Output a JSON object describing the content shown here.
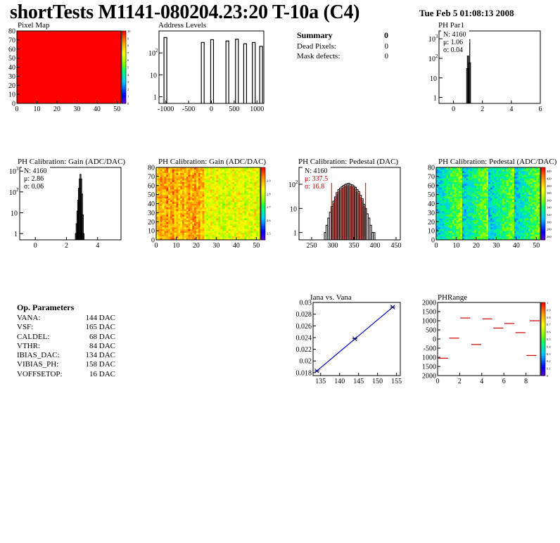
{
  "title": "shortTests M1141-080204.23:20 T-10a (C4)",
  "date": "Tue Feb  5 01:08:13 2008",
  "summary": {
    "heading": "Summary",
    "heading_value": "0",
    "rows": [
      {
        "label": "Dead Pixels:",
        "value": "0"
      },
      {
        "label": "Mask defects:",
        "value": "0"
      }
    ]
  },
  "op_parameters": {
    "heading": "Op. Parameters",
    "rows": [
      {
        "label": "VANA:",
        "value": "144 DAC"
      },
      {
        "label": "VSF:",
        "value": "165 DAC"
      },
      {
        "label": "CALDEL:",
        "value": "68 DAC"
      },
      {
        "label": "VTHR:",
        "value": "84 DAC"
      },
      {
        "label": "IBIAS_DAC:",
        "value": "134 DAC"
      },
      {
        "label": "VIBIAS_PH:",
        "value": "158 DAC"
      },
      {
        "label": "VOFFSETOP:",
        "value": "16 DAC"
      }
    ]
  },
  "chart_data": [
    {
      "id": "pixel-map",
      "type": "heatmap",
      "title": "Pixel Map",
      "xlim": [
        0,
        52
      ],
      "ylim": [
        0,
        80
      ],
      "xticks": [
        "0",
        "10",
        "20",
        "30",
        "40",
        "50"
      ],
      "yticks": [
        "0",
        "10",
        "20",
        "30",
        "40",
        "50",
        "60",
        "70",
        "80"
      ],
      "fill_color": "#ff0000",
      "z_value": 10,
      "colorbar": {
        "range": [
          0,
          10
        ],
        "ticks": [
          "0",
          "1",
          "2",
          "3",
          "4",
          "5",
          "6",
          "7",
          "8",
          "9",
          "10"
        ]
      }
    },
    {
      "id": "address-levels",
      "type": "bar",
      "title": "Address Levels",
      "xlim": [
        -1150,
        1150
      ],
      "yscale": "log",
      "ylim": [
        0.5,
        1000
      ],
      "xticks": [
        "-1000",
        "-500",
        "0",
        "500",
        "1000"
      ],
      "yticks": [
        "1",
        "10",
        "10^2"
      ],
      "peaks": [
        {
          "x": -1010,
          "y": 500
        },
        {
          "x": -190,
          "y": 300
        },
        {
          "x": 15,
          "y": 400
        },
        {
          "x": 350,
          "y": 350
        },
        {
          "x": 560,
          "y": 420
        },
        {
          "x": 740,
          "y": 260
        },
        {
          "x": 930,
          "y": 300
        },
        {
          "x": 1090,
          "y": 200
        }
      ]
    },
    {
      "id": "ph-par1",
      "type": "bar",
      "title": "PH Par1",
      "xlim": [
        -1,
        6
      ],
      "yscale": "log",
      "ylim": [
        0.5,
        2500
      ],
      "xticks": [
        "0",
        "2",
        "4",
        "6"
      ],
      "yticks": [
        "1",
        "10",
        "10^2",
        "10^3"
      ],
      "stats": {
        "N": "N: 4160",
        "mu": "μ: 1.06",
        "sigma": "σ: 0.04"
      },
      "bins": [
        {
          "x": 0.97,
          "y": 30
        },
        {
          "x": 1.02,
          "y": 600
        },
        {
          "x": 1.07,
          "y": 900
        },
        {
          "x": 1.12,
          "y": 60
        }
      ]
    },
    {
      "id": "ph-gain-hist",
      "type": "bar",
      "title": "PH Calibration: Gain (ADC/DAC)",
      "xlim": [
        -1,
        5.5
      ],
      "yscale": "log",
      "ylim": [
        0.5,
        1500
      ],
      "xticks": [
        "0",
        "2",
        "4"
      ],
      "yticks": [
        "1",
        "10",
        "10^2",
        "10^3"
      ],
      "stats": {
        "N": "N: 4160",
        "mu": "μ: 2.86",
        "sigma": "σ: 0.06"
      },
      "bins": [
        {
          "x": 2.6,
          "y": 1
        },
        {
          "x": 2.65,
          "y": 3
        },
        {
          "x": 2.7,
          "y": 12
        },
        {
          "x": 2.75,
          "y": 40
        },
        {
          "x": 2.8,
          "y": 150
        },
        {
          "x": 2.85,
          "y": 420
        },
        {
          "x": 2.9,
          "y": 700
        },
        {
          "x": 2.95,
          "y": 420
        },
        {
          "x": 3.0,
          "y": 80
        },
        {
          "x": 3.05,
          "y": 8
        },
        {
          "x": 3.1,
          "y": 1
        }
      ]
    },
    {
      "id": "ph-gain-map",
      "type": "heatmap",
      "title": "PH Calibration: Gain (ADC/DAC)",
      "xlim": [
        0,
        52
      ],
      "ylim": [
        0,
        80
      ],
      "xticks": [
        "0",
        "10",
        "20",
        "30",
        "40",
        "50"
      ],
      "yticks": [
        "0",
        "10",
        "20",
        "30",
        "40",
        "50",
        "60",
        "70",
        "80"
      ],
      "zlim": [
        2.45,
        3.0
      ],
      "colorbar": {
        "range": [
          2.45,
          3.0
        ],
        "ticks": [
          "2.5",
          "2.6",
          "2.7",
          "2.8",
          "2.9"
        ]
      }
    },
    {
      "id": "ph-pedestal-hist",
      "type": "bar",
      "title": "PH Calibration: Pedestal (DAC)",
      "xlim": [
        220,
        460
      ],
      "yscale": "log",
      "ylim": [
        0.5,
        500
      ],
      "xticks": [
        "250",
        "300",
        "350",
        "400",
        "450"
      ],
      "yticks": [
        "1",
        "10",
        "10^2"
      ],
      "stats": {
        "N": "N: 4160",
        "mu": "μ: 337.5",
        "sigma": "σ: 16.8"
      },
      "mean": 337.5,
      "sigma": 16.8,
      "bins": [
        {
          "x": 282,
          "y": 1
        },
        {
          "x": 286,
          "y": 2
        },
        {
          "x": 290,
          "y": 4
        },
        {
          "x": 294,
          "y": 7
        },
        {
          "x": 298,
          "y": 12
        },
        {
          "x": 302,
          "y": 20
        },
        {
          "x": 306,
          "y": 30
        },
        {
          "x": 310,
          "y": 45
        },
        {
          "x": 314,
          "y": 60
        },
        {
          "x": 318,
          "y": 70
        },
        {
          "x": 322,
          "y": 80
        },
        {
          "x": 326,
          "y": 90
        },
        {
          "x": 330,
          "y": 100
        },
        {
          "x": 334,
          "y": 105
        },
        {
          "x": 338,
          "y": 110
        },
        {
          "x": 342,
          "y": 100
        },
        {
          "x": 346,
          "y": 95
        },
        {
          "x": 350,
          "y": 85
        },
        {
          "x": 354,
          "y": 75
        },
        {
          "x": 358,
          "y": 60
        },
        {
          "x": 362,
          "y": 50
        },
        {
          "x": 366,
          "y": 35
        },
        {
          "x": 370,
          "y": 25
        },
        {
          "x": 374,
          "y": 15
        },
        {
          "x": 378,
          "y": 10
        },
        {
          "x": 382,
          "y": 6
        },
        {
          "x": 386,
          "y": 4
        },
        {
          "x": 390,
          "y": 2
        },
        {
          "x": 394,
          "y": 1
        },
        {
          "x": 398,
          "y": 1
        }
      ]
    },
    {
      "id": "ph-pedestal-map",
      "type": "heatmap",
      "title": "PH Calibration: Pedestal (ADC/DAC)",
      "xlim": [
        0,
        52
      ],
      "ylim": [
        0,
        80
      ],
      "xticks": [
        "0",
        "10",
        "20",
        "30",
        "40",
        "50"
      ],
      "yticks": [
        "0",
        "10",
        "20",
        "30",
        "40",
        "50",
        "60",
        "70",
        "80"
      ],
      "zlim": [
        250,
        450
      ],
      "colorbar": {
        "range": [
          250,
          450
        ],
        "ticks": [
          "260",
          "280",
          "300",
          "320",
          "340",
          "360",
          "380",
          "400",
          "420",
          "440"
        ]
      }
    },
    {
      "id": "iana-vs-vana",
      "type": "line",
      "title": "Iana vs. Vana",
      "xlim": [
        133,
        156
      ],
      "ylim": [
        0.0175,
        0.03
      ],
      "xticks": [
        "135",
        "140",
        "145",
        "150",
        "155"
      ],
      "yticks": [
        "0.018",
        "0.02",
        "0.022",
        "0.024",
        "0.026",
        "0.028",
        "0.03"
      ],
      "x": [
        134,
        144,
        154
      ],
      "y": [
        0.0183,
        0.0238,
        0.0292
      ],
      "fit_color": "#0000cc"
    },
    {
      "id": "ph-range",
      "type": "scatter",
      "title": "PHRange",
      "xlim": [
        0,
        9.3
      ],
      "ylim": [
        -2000,
        2000
      ],
      "xticks": [
        "0",
        "2",
        "4",
        "6",
        "8"
      ],
      "yticks": [
        "2000",
        "1500",
        "1000",
        "500",
        "0",
        "-500",
        "1000",
        "1500",
        "2000"
      ],
      "segments": [
        {
          "x": 0.5,
          "y": -1050
        },
        {
          "x": 1.5,
          "y": 50
        },
        {
          "x": 2.5,
          "y": 1150
        },
        {
          "x": 3.5,
          "y": -300
        },
        {
          "x": 4.5,
          "y": 1100
        },
        {
          "x": 5.5,
          "y": 600
        },
        {
          "x": 6.5,
          "y": 850
        },
        {
          "x": 7.5,
          "y": 350
        },
        {
          "x": 8.5,
          "y": -900
        },
        {
          "x": 8.8,
          "y": 1000
        }
      ],
      "colorbar": {
        "range": [
          0,
          1
        ],
        "ticks": [
          "0",
          "0.1",
          "0.2",
          "0.3",
          "0.4",
          "0.5",
          "0.6",
          "0.7",
          "0.8",
          "0.9",
          "1"
        ]
      }
    }
  ]
}
